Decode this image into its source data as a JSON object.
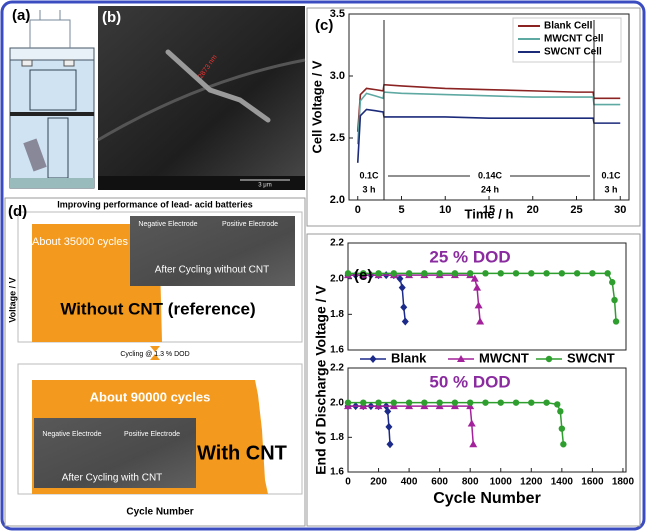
{
  "panels": {
    "a": {
      "label": "(a)"
    },
    "b": {
      "label": "(b)",
      "measure": "2873 nm",
      "scale_bar": "3 μm"
    },
    "d": {
      "label": "(d)",
      "title": "Improving performance of lead- acid batteries",
      "top": {
        "cycles": "About 35000 cycles",
        "negative": "Negative Electrode",
        "positive": "Positive Electrode",
        "caption": "After Cycling without CNT",
        "result": "Without CNT (reference)"
      },
      "middle": "Cycling @ 1.3 % DOD",
      "bottom": {
        "cycles": "About 90000 cycles",
        "negative": "Negative Electrode",
        "positive": "Positive Electrode",
        "caption": "After Cycling with CNT",
        "result": "With CNT"
      },
      "ylabel": "Voltage / V",
      "xlabel": "Cycle Number"
    }
  },
  "chart_data": [
    {
      "type": "line",
      "label": "(c)",
      "xlabel": "Time / h",
      "ylabel": "Cell Voltage / V",
      "xlim": [
        -1,
        31
      ],
      "xticks": [
        0,
        5,
        10,
        15,
        20,
        25,
        30
      ],
      "ylim": [
        2,
        3.5
      ],
      "yticks": [
        {
          "value": 2,
          "label": "2.0"
        },
        2.5,
        {
          "value": 3,
          "label": "3.0"
        },
        3.5
      ],
      "legend": "upper-right",
      "annotations": [
        "0.1C",
        "3 h",
        "0.14C",
        "24 h",
        "0.1C",
        "3 h"
      ],
      "x": [
        0,
        0.3,
        1,
        2,
        2.9,
        3,
        5,
        10,
        15,
        20,
        25,
        26.9,
        27,
        30
      ],
      "series": [
        {
          "name": "Blank Cell",
          "color": "#8b2323",
          "values": [
            2.55,
            2.85,
            2.9,
            2.89,
            2.88,
            2.93,
            2.92,
            2.9,
            2.89,
            2.88,
            2.87,
            2.87,
            2.82,
            2.82
          ]
        },
        {
          "name": "MWCNT Cell",
          "color": "#5fa9a3",
          "values": [
            2.45,
            2.8,
            2.86,
            2.84,
            2.82,
            2.87,
            2.86,
            2.85,
            2.84,
            2.83,
            2.83,
            2.83,
            2.77,
            2.77
          ]
        },
        {
          "name": "SWCNT Cell",
          "color": "#1c2a7a",
          "values": [
            2.3,
            2.68,
            2.73,
            2.72,
            2.71,
            2.67,
            2.67,
            2.67,
            2.66,
            2.66,
            2.66,
            2.66,
            2.62,
            2.62
          ]
        }
      ]
    },
    {
      "type": "line",
      "label": "(e)",
      "annotation": "25 % DOD",
      "ylabel": "End of Discharge Voltage / V",
      "xlim": [
        0,
        1820
      ],
      "ylim": [
        1.6,
        2.2
      ],
      "yticks": [
        1.6,
        1.8,
        {
          "value": 2,
          "label": "2.0"
        },
        2.2
      ],
      "legend": "below",
      "series": [
        {
          "name": "Blank",
          "color": "#1c2a8a",
          "marker": "diamond",
          "x": [
            0,
            50,
            100,
            150,
            200,
            250,
            300,
            340,
            355,
            365,
            375
          ],
          "values": [
            2.02,
            2.02,
            2.02,
            2.02,
            2.02,
            2.02,
            2.02,
            2.0,
            1.95,
            1.84,
            1.76
          ]
        },
        {
          "name": "MWCNT",
          "color": "#a3229c",
          "marker": "triangle",
          "x": [
            0,
            100,
            200,
            300,
            400,
            500,
            600,
            700,
            800,
            830,
            845,
            855,
            865
          ],
          "values": [
            2.02,
            2.02,
            2.02,
            2.02,
            2.02,
            2.02,
            2.02,
            2.02,
            2.02,
            2.0,
            1.95,
            1.85,
            1.76
          ]
        },
        {
          "name": "SWCNT",
          "color": "#2e9e2e",
          "marker": "circle",
          "x": [
            0,
            100,
            200,
            300,
            400,
            500,
            600,
            700,
            800,
            900,
            1000,
            1100,
            1200,
            1300,
            1400,
            1500,
            1600,
            1700,
            1730,
            1745,
            1755
          ],
          "values": [
            2.03,
            2.03,
            2.03,
            2.03,
            2.03,
            2.03,
            2.03,
            2.03,
            2.03,
            2.03,
            2.03,
            2.03,
            2.03,
            2.03,
            2.03,
            2.03,
            2.03,
            2.03,
            1.98,
            1.88,
            1.76
          ]
        }
      ]
    },
    {
      "type": "line",
      "annotation": "50 % DOD",
      "xlabel": "Cycle Number",
      "xlim": [
        0,
        1820
      ],
      "xticks": [
        0,
        200,
        400,
        600,
        800,
        1000,
        1200,
        1400,
        1600,
        1800
      ],
      "ylim": [
        1.6,
        2.2
      ],
      "yticks": [
        1.6,
        1.8,
        {
          "value": 2,
          "label": "2.0"
        },
        2.2
      ],
      "series": [
        {
          "color": "#1c2a8a",
          "marker": "diamond",
          "x": [
            0,
            50,
            100,
            150,
            200,
            250,
            260,
            268,
            275
          ],
          "values": [
            1.98,
            1.98,
            1.98,
            1.98,
            1.98,
            1.98,
            1.95,
            1.86,
            1.76
          ]
        },
        {
          "color": "#a3229c",
          "marker": "triangle",
          "x": [
            0,
            100,
            200,
            300,
            400,
            500,
            600,
            700,
            800,
            810,
            820
          ],
          "values": [
            1.98,
            1.98,
            1.98,
            1.98,
            1.98,
            1.98,
            1.98,
            1.98,
            1.98,
            1.88,
            1.76
          ]
        },
        {
          "color": "#2e9e2e",
          "marker": "circle",
          "x": [
            0,
            100,
            200,
            300,
            400,
            500,
            600,
            700,
            800,
            900,
            1000,
            1100,
            1200,
            1300,
            1370,
            1390,
            1400,
            1410
          ],
          "values": [
            2.0,
            2.0,
            2.0,
            2.0,
            2.0,
            2.0,
            2.0,
            2.0,
            2.0,
            2.0,
            2.0,
            2.0,
            2.0,
            2.0,
            1.99,
            1.95,
            1.85,
            1.76
          ]
        }
      ]
    }
  ]
}
